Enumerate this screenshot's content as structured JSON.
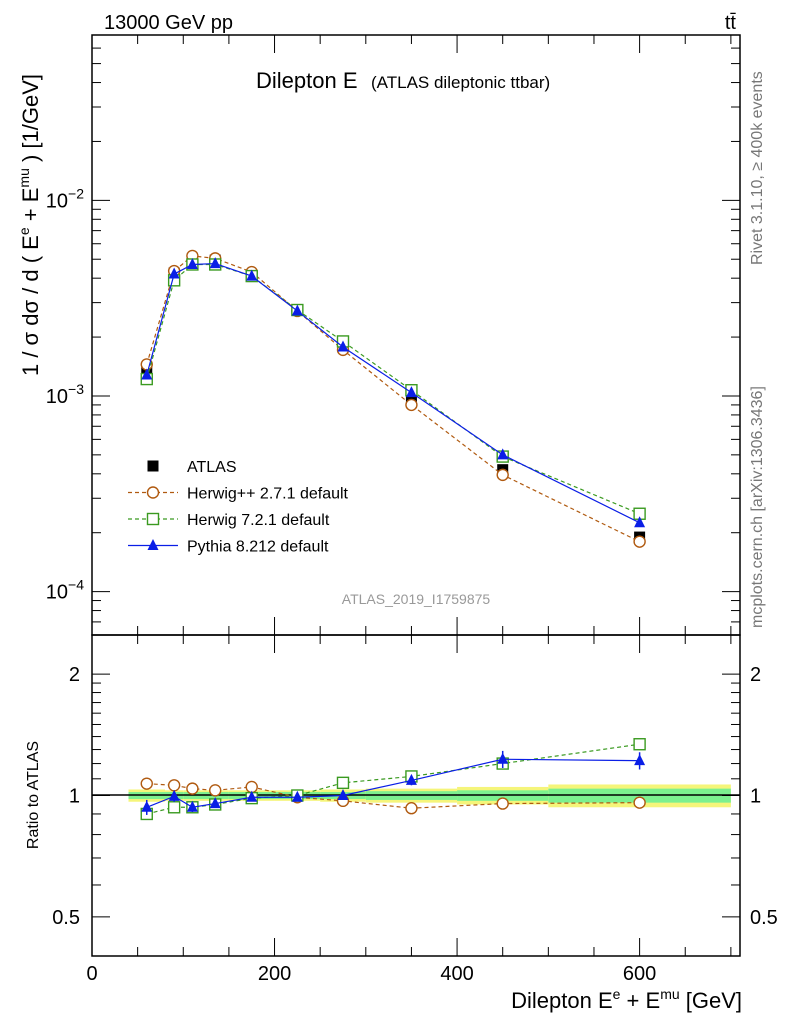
{
  "header": {
    "energy_label": "13000 GeV pp",
    "process_label": "tt̄"
  },
  "side_labels": {
    "rivet": "Rivet 3.1.10, ≥ 400k events",
    "mcplots": "mcplots.cern.ch [arXiv:1306.3436]"
  },
  "chart_data": [
    {
      "type": "line",
      "panel": "main",
      "title": "Dilepton E",
      "subtitle": "(ATLAS dileptonic ttbar)",
      "ylabel": "1 / σ dσ / d ( E^e + E^mu ) [1/GeV]",
      "ylabel_parts": {
        "pre": "1 / σ  dσ / d ( E",
        "sup1": "e",
        "mid": " + E",
        "sup2": "mu",
        "post": " ) [1/GeV]"
      },
      "xlabel": "Dilepton E^e + E^mu [GeV]",
      "yscale": "log",
      "xlim": [
        0,
        710
      ],
      "ylim": [
        6e-05,
        0.07
      ],
      "y_ticks": [
        {
          "value": 0.0001,
          "base": "10",
          "exp": "−4"
        },
        {
          "value": 0.001,
          "base": "10",
          "exp": "−3"
        },
        {
          "value": 0.01,
          "base": "10",
          "exp": "−2"
        }
      ],
      "x": [
        60,
        90,
        110,
        135,
        175,
        225,
        275,
        350,
        450,
        600
      ],
      "series": [
        {
          "name": "ATLAS",
          "marker": "square-filled",
          "color": "#000000",
          "values": [
            0.00135,
            0.00425,
            0.00505,
            0.00495,
            0.00415,
            0.00275,
            0.00178,
            0.00096,
            0.00042,
            0.00019
          ],
          "errors": [
            6e-05,
            0.0001,
            0.0001,
            0.0001,
            8e-05,
            5e-05,
            4e-05,
            2e-05,
            1e-05,
            8e-06
          ]
        },
        {
          "name": "Herwig++ 2.7.1 default",
          "marker": "circle-open",
          "color": "#b05a10",
          "dashed": true,
          "values": [
            0.00145,
            0.00435,
            0.0052,
            0.00505,
            0.0043,
            0.00272,
            0.00172,
            0.0009,
            0.000395,
            0.00018
          ]
        },
        {
          "name": "Herwig 7.2.1 default",
          "marker": "square-open",
          "color": "#3a9a20",
          "dashed": true,
          "values": [
            0.00122,
            0.0039,
            0.0047,
            0.0047,
            0.0041,
            0.00275,
            0.0019,
            0.00107,
            0.00049,
            0.00025
          ]
        },
        {
          "name": "Pythia 8.212 default",
          "marker": "triangle-filled",
          "color": "#0a1ee6",
          "dashed": false,
          "values": [
            0.00128,
            0.0042,
            0.0047,
            0.00475,
            0.0041,
            0.00272,
            0.00178,
            0.00104,
            0.0005,
            0.000225
          ]
        }
      ],
      "watermark": "ATLAS_2019_I1759875",
      "legend_position": "lower-left"
    },
    {
      "type": "line",
      "panel": "ratio",
      "ylabel": "Ratio to ATLAS",
      "xlabel": "Dilepton E^e + E^mu [GeV]",
      "xlabel_parts": {
        "pre": "Dilepton E",
        "sup1": "e",
        "mid": " + E",
        "sup2": "mu",
        "post": " [GeV]"
      },
      "yscale": "log",
      "xlim": [
        0,
        710
      ],
      "ylim": [
        0.4,
        2.5
      ],
      "x_ticks": [
        {
          "value": 0,
          "label": "0"
        },
        {
          "value": 200,
          "label": "200"
        },
        {
          "value": 400,
          "label": "400"
        },
        {
          "value": 600,
          "label": "600"
        }
      ],
      "y_ticks": [
        {
          "value": 0.5,
          "label": "0.5"
        },
        {
          "value": 1,
          "label": "1"
        },
        {
          "value": 2,
          "label": "2"
        }
      ],
      "x": [
        60,
        90,
        110,
        135,
        175,
        225,
        275,
        350,
        450,
        600
      ],
      "bins": [
        [
          40,
          80
        ],
        [
          80,
          100
        ],
        [
          100,
          120
        ],
        [
          120,
          150
        ],
        [
          150,
          200
        ],
        [
          200,
          250
        ],
        [
          250,
          300
        ],
        [
          300,
          400
        ],
        [
          400,
          500
        ],
        [
          500,
          700
        ]
      ],
      "band_stat": [
        0.02,
        0.02,
        0.02,
        0.02,
        0.02,
        0.02,
        0.02,
        0.025,
        0.03,
        0.04
      ],
      "band_total": [
        0.035,
        0.03,
        0.03,
        0.03,
        0.03,
        0.03,
        0.035,
        0.04,
        0.05,
        0.065
      ],
      "series": [
        {
          "name": "Herwig++ 2.7.1 default",
          "marker": "circle-open",
          "color": "#b05a10",
          "dashed": true,
          "values": [
            1.07,
            1.06,
            1.04,
            1.03,
            1.05,
            0.99,
            0.97,
            0.93,
            0.955,
            0.96
          ]
        },
        {
          "name": "Herwig 7.2.1 default",
          "marker": "square-open",
          "color": "#3a9a20",
          "dashed": true,
          "values": [
            0.9,
            0.935,
            0.935,
            0.95,
            0.985,
            1.0,
            1.075,
            1.115,
            1.2,
            1.34
          ]
        },
        {
          "name": "Pythia 8.212 default",
          "marker": "triangle-filled",
          "color": "#0a1ee6",
          "dashed": false,
          "values": [
            0.935,
            0.995,
            0.935,
            0.955,
            0.99,
            0.99,
            1.0,
            1.09,
            1.23,
            1.22
          ],
          "errors": [
            0.04,
            0.03,
            0.025,
            0.02,
            0.02,
            0.02,
            0.025,
            0.03,
            0.06,
            0.06
          ]
        }
      ]
    }
  ]
}
